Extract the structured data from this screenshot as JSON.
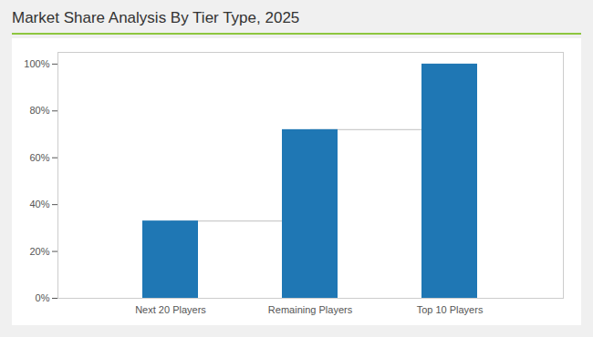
{
  "chart_data": {
    "type": "bar",
    "title": "Market Share Analysis By Tier Type, 2025",
    "categories": [
      "Next 20 Players",
      "Remaining Players",
      "Top 10 Players"
    ],
    "values": [
      33,
      72,
      100
    ],
    "color": "#1F77B4",
    "ylim": [
      0,
      105
    ],
    "yticks": [
      {
        "value": 0,
        "label": "0%"
      },
      {
        "value": 20,
        "label": "20%"
      },
      {
        "value": 40,
        "label": "40%"
      },
      {
        "value": 60,
        "label": "60%"
      },
      {
        "value": 80,
        "label": "80%"
      },
      {
        "value": 100,
        "label": "100%"
      }
    ],
    "grid": false
  }
}
